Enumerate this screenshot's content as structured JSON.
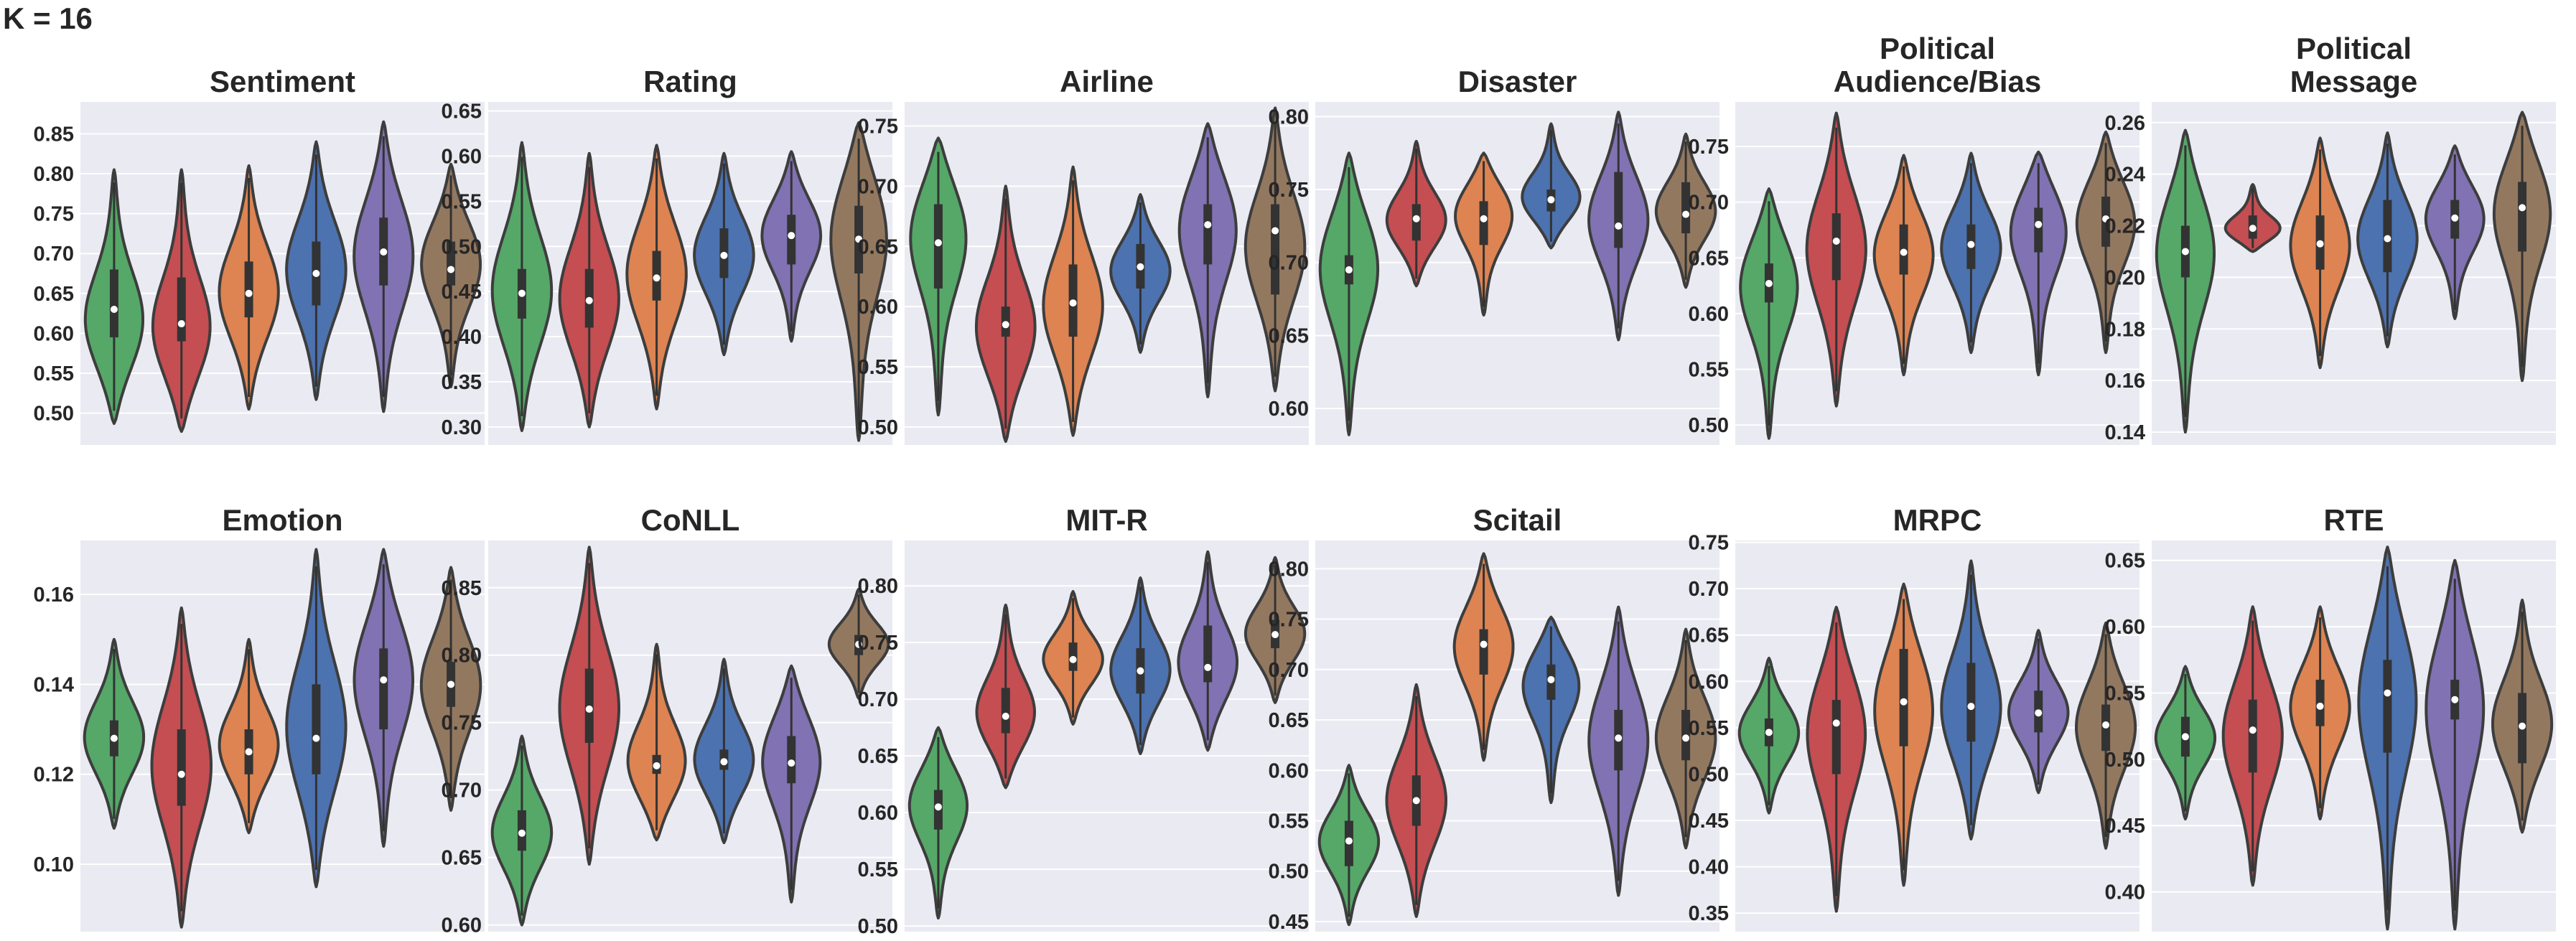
{
  "figure_label": "K = 16",
  "colors": {
    "panel_bg": "#eaeaf2",
    "grid": "#ffffff",
    "outline": "#3d3d3d",
    "text": "#262626",
    "box": "#333333",
    "median": "#ffffff",
    "series": [
      "#55a868",
      "#c44e52",
      "#dd8452",
      "#4c72b0",
      "#8172b3",
      "#937860"
    ]
  },
  "chart_data": [
    {
      "type": "violin",
      "title": [
        "Sentiment"
      ],
      "ylim": [
        0.46,
        0.89
      ],
      "yticks": [
        "0.50",
        "0.55",
        "0.60",
        "0.65",
        "0.70",
        "0.75",
        "0.80",
        "0.85"
      ],
      "violins": [
        {
          "min": 0.487,
          "max": 0.805,
          "q1": 0.595,
          "median": 0.63,
          "q3": 0.68,
          "mode": 0.61
        },
        {
          "min": 0.477,
          "max": 0.805,
          "q1": 0.59,
          "median": 0.612,
          "q3": 0.67,
          "mode": 0.6
        },
        {
          "min": 0.505,
          "max": 0.81,
          "q1": 0.62,
          "median": 0.65,
          "q3": 0.69,
          "mode": 0.65
        },
        {
          "min": 0.517,
          "max": 0.84,
          "q1": 0.635,
          "median": 0.675,
          "q3": 0.715,
          "mode": 0.68
        },
        {
          "min": 0.502,
          "max": 0.865,
          "q1": 0.66,
          "median": 0.702,
          "q3": 0.745,
          "mode": 0.7
        },
        {
          "min": 0.533,
          "max": 0.812,
          "q1": 0.66,
          "median": 0.68,
          "q3": 0.715,
          "mode": 0.69
        }
      ]
    },
    {
      "type": "violin",
      "title": [
        "Rating"
      ],
      "ylim": [
        0.28,
        0.66
      ],
      "yticks": [
        "0.30",
        "0.35",
        "0.40",
        "0.45",
        "0.50",
        "0.55",
        "0.60",
        "0.65"
      ],
      "violins": [
        {
          "min": 0.296,
          "max": 0.615,
          "q1": 0.42,
          "median": 0.448,
          "q3": 0.475,
          "mode": 0.45
        },
        {
          "min": 0.3,
          "max": 0.603,
          "q1": 0.41,
          "median": 0.44,
          "q3": 0.475,
          "mode": 0.44
        },
        {
          "min": 0.32,
          "max": 0.612,
          "q1": 0.44,
          "median": 0.465,
          "q3": 0.495,
          "mode": 0.47
        },
        {
          "min": 0.38,
          "max": 0.603,
          "q1": 0.465,
          "median": 0.49,
          "q3": 0.52,
          "mode": 0.49
        },
        {
          "min": 0.395,
          "max": 0.605,
          "q1": 0.48,
          "median": 0.512,
          "q3": 0.535,
          "mode": 0.515
        },
        {
          "min": 0.285,
          "max": 0.637,
          "q1": 0.47,
          "median": 0.508,
          "q3": 0.545,
          "mode": 0.52
        }
      ]
    },
    {
      "type": "violin",
      "title": [
        "Airline"
      ],
      "ylim": [
        0.485,
        0.77
      ],
      "yticks": [
        "0.50",
        "0.55",
        "0.60",
        "0.65",
        "0.70",
        "0.75"
      ],
      "violins": [
        {
          "min": 0.51,
          "max": 0.74,
          "q1": 0.615,
          "median": 0.653,
          "q3": 0.685,
          "mode": 0.665
        },
        {
          "min": 0.488,
          "max": 0.7,
          "q1": 0.575,
          "median": 0.585,
          "q3": 0.6,
          "mode": 0.58
        },
        {
          "min": 0.493,
          "max": 0.716,
          "q1": 0.575,
          "median": 0.603,
          "q3": 0.635,
          "mode": 0.6
        },
        {
          "min": 0.562,
          "max": 0.693,
          "q1": 0.615,
          "median": 0.633,
          "q3": 0.652,
          "mode": 0.63
        },
        {
          "min": 0.525,
          "max": 0.752,
          "q1": 0.635,
          "median": 0.668,
          "q3": 0.685,
          "mode": 0.67
        },
        {
          "min": 0.53,
          "max": 0.765,
          "q1": 0.61,
          "median": 0.663,
          "q3": 0.685,
          "mode": 0.65
        }
      ]
    },
    {
      "type": "violin",
      "title": [
        "Disaster"
      ],
      "ylim": [
        0.575,
        0.81
      ],
      "yticks": [
        "0.60",
        "0.65",
        "0.70",
        "0.75",
        "0.80"
      ],
      "violins": [
        {
          "min": 0.582,
          "max": 0.775,
          "q1": 0.685,
          "median": 0.695,
          "q3": 0.705,
          "mode": 0.7
        },
        {
          "min": 0.684,
          "max": 0.783,
          "q1": 0.715,
          "median": 0.73,
          "q3": 0.74,
          "mode": 0.728
        },
        {
          "min": 0.664,
          "max": 0.775,
          "q1": 0.712,
          "median": 0.73,
          "q3": 0.742,
          "mode": 0.735
        },
        {
          "min": 0.71,
          "max": 0.795,
          "q1": 0.735,
          "median": 0.743,
          "q3": 0.75,
          "mode": 0.743
        },
        {
          "min": 0.647,
          "max": 0.803,
          "q1": 0.71,
          "median": 0.725,
          "q3": 0.762,
          "mode": 0.73
        },
        {
          "min": 0.683,
          "max": 0.788,
          "q1": 0.72,
          "median": 0.733,
          "q3": 0.755,
          "mode": 0.735
        }
      ]
    },
    {
      "type": "violin",
      "title": [
        "Political",
        "Audience/Bias"
      ],
      "ylim": [
        0.482,
        0.79
      ],
      "yticks": [
        "0.50",
        "0.55",
        "0.60",
        "0.65",
        "0.70",
        "0.75"
      ],
      "violins": [
        {
          "min": 0.488,
          "max": 0.712,
          "q1": 0.61,
          "median": 0.627,
          "q3": 0.645,
          "mode": 0.63
        },
        {
          "min": 0.517,
          "max": 0.78,
          "q1": 0.63,
          "median": 0.665,
          "q3": 0.69,
          "mode": 0.66
        },
        {
          "min": 0.545,
          "max": 0.742,
          "q1": 0.635,
          "median": 0.655,
          "q3": 0.68,
          "mode": 0.655
        },
        {
          "min": 0.565,
          "max": 0.744,
          "q1": 0.64,
          "median": 0.662,
          "q3": 0.68,
          "mode": 0.66
        },
        {
          "min": 0.545,
          "max": 0.745,
          "q1": 0.655,
          "median": 0.68,
          "q3": 0.695,
          "mode": 0.68
        },
        {
          "min": 0.565,
          "max": 0.763,
          "q1": 0.66,
          "median": 0.685,
          "q3": 0.705,
          "mode": 0.685
        }
      ]
    },
    {
      "type": "violin",
      "title": [
        "Political",
        "Message"
      ],
      "ylim": [
        0.135,
        0.268
      ],
      "yticks": [
        "0.14",
        "0.16",
        "0.18",
        "0.20",
        "0.22",
        "0.24",
        "0.26"
      ],
      "violins": [
        {
          "min": 0.14,
          "max": 0.257,
          "q1": 0.2,
          "median": 0.21,
          "q3": 0.22,
          "mode": 0.212
        },
        {
          "min": 0.21,
          "max": 0.236,
          "q1": 0.215,
          "median": 0.219,
          "q3": 0.224,
          "mode": 0.218
        },
        {
          "min": 0.165,
          "max": 0.254,
          "q1": 0.203,
          "median": 0.213,
          "q3": 0.224,
          "mode": 0.213
        },
        {
          "min": 0.173,
          "max": 0.256,
          "q1": 0.202,
          "median": 0.215,
          "q3": 0.23,
          "mode": 0.215
        },
        {
          "min": 0.184,
          "max": 0.251,
          "q1": 0.215,
          "median": 0.223,
          "q3": 0.23,
          "mode": 0.224
        },
        {
          "min": 0.16,
          "max": 0.264,
          "q1": 0.21,
          "median": 0.227,
          "q3": 0.237,
          "mode": 0.228
        }
      ]
    },
    {
      "type": "violin",
      "title": [
        "Emotion"
      ],
      "ylim": [
        0.085,
        0.172
      ],
      "yticks": [
        "0.10",
        "0.12",
        "0.14",
        "0.16"
      ],
      "violins": [
        {
          "min": 0.108,
          "max": 0.15,
          "q1": 0.124,
          "median": 0.128,
          "q3": 0.132,
          "mode": 0.128
        },
        {
          "min": 0.086,
          "max": 0.157,
          "q1": 0.113,
          "median": 0.12,
          "q3": 0.13,
          "mode": 0.122
        },
        {
          "min": 0.107,
          "max": 0.15,
          "q1": 0.12,
          "median": 0.125,
          "q3": 0.13,
          "mode": 0.126
        },
        {
          "min": 0.095,
          "max": 0.17,
          "q1": 0.12,
          "median": 0.128,
          "q3": 0.14,
          "mode": 0.13
        },
        {
          "min": 0.104,
          "max": 0.17,
          "q1": 0.13,
          "median": 0.141,
          "q3": 0.148,
          "mode": 0.142
        },
        {
          "min": 0.112,
          "max": 0.166,
          "q1": 0.135,
          "median": 0.14,
          "q3": 0.145,
          "mode": 0.14
        }
      ]
    },
    {
      "type": "violin",
      "title": [
        "CoNLL"
      ],
      "ylim": [
        0.595,
        0.885
      ],
      "yticks": [
        "0.60",
        "0.65",
        "0.70",
        "0.75",
        "0.80",
        "0.85"
      ],
      "violins": [
        {
          "min": 0.6,
          "max": 0.74,
          "q1": 0.655,
          "median": 0.668,
          "q3": 0.685,
          "mode": 0.668
        },
        {
          "min": 0.645,
          "max": 0.88,
          "q1": 0.735,
          "median": 0.76,
          "q3": 0.79,
          "mode": 0.76
        },
        {
          "min": 0.663,
          "max": 0.808,
          "q1": 0.712,
          "median": 0.718,
          "q3": 0.726,
          "mode": 0.718
        },
        {
          "min": 0.661,
          "max": 0.797,
          "q1": 0.715,
          "median": 0.721,
          "q3": 0.73,
          "mode": 0.721
        },
        {
          "min": 0.617,
          "max": 0.792,
          "q1": 0.705,
          "median": 0.72,
          "q3": 0.74,
          "mode": 0.725
        },
        {
          "min": 0.768,
          "max": 0.849,
          "q1": 0.8,
          "median": 0.808,
          "q3": 0.815,
          "mode": 0.808
        }
      ]
    },
    {
      "type": "violin",
      "title": [
        "MIT-R"
      ],
      "ylim": [
        0.495,
        0.84
      ],
      "yticks": [
        "0.50",
        "0.55",
        "0.60",
        "0.65",
        "0.70",
        "0.75",
        "0.80"
      ],
      "violins": [
        {
          "min": 0.507,
          "max": 0.675,
          "q1": 0.585,
          "median": 0.605,
          "q3": 0.62,
          "mode": 0.61
        },
        {
          "min": 0.622,
          "max": 0.783,
          "q1": 0.67,
          "median": 0.685,
          "q3": 0.71,
          "mode": 0.685
        },
        {
          "min": 0.678,
          "max": 0.795,
          "q1": 0.725,
          "median": 0.735,
          "q3": 0.75,
          "mode": 0.735
        },
        {
          "min": 0.652,
          "max": 0.807,
          "q1": 0.705,
          "median": 0.725,
          "q3": 0.745,
          "mode": 0.725
        },
        {
          "min": 0.655,
          "max": 0.83,
          "q1": 0.715,
          "median": 0.728,
          "q3": 0.765,
          "mode": 0.73
        },
        {
          "min": 0.697,
          "max": 0.825,
          "q1": 0.745,
          "median": 0.757,
          "q3": 0.77,
          "mode": 0.757
        }
      ]
    },
    {
      "type": "violin",
      "title": [
        "Scitail"
      ],
      "ylim": [
        0.44,
        0.828
      ],
      "yticks": [
        "0.45",
        "0.50",
        "0.55",
        "0.60",
        "0.65",
        "0.70",
        "0.75",
        "0.80"
      ],
      "violins": [
        {
          "min": 0.447,
          "max": 0.605,
          "q1": 0.505,
          "median": 0.53,
          "q3": 0.55,
          "mode": 0.53
        },
        {
          "min": 0.455,
          "max": 0.685,
          "q1": 0.545,
          "median": 0.57,
          "q3": 0.595,
          "mode": 0.57
        },
        {
          "min": 0.61,
          "max": 0.815,
          "q1": 0.695,
          "median": 0.725,
          "q3": 0.74,
          "mode": 0.725
        },
        {
          "min": 0.568,
          "max": 0.752,
          "q1": 0.67,
          "median": 0.69,
          "q3": 0.705,
          "mode": 0.69
        },
        {
          "min": 0.476,
          "max": 0.762,
          "q1": 0.6,
          "median": 0.632,
          "q3": 0.66,
          "mode": 0.632
        },
        {
          "min": 0.523,
          "max": 0.74,
          "q1": 0.61,
          "median": 0.632,
          "q3": 0.66,
          "mode": 0.632
        }
      ]
    },
    {
      "type": "violin",
      "title": [
        "MRPC"
      ],
      "ylim": [
        0.33,
        0.752
      ],
      "yticks": [
        "0.35",
        "0.40",
        "0.45",
        "0.50",
        "0.55",
        "0.60",
        "0.65",
        "0.70",
        "0.75"
      ],
      "violins": [
        {
          "min": 0.458,
          "max": 0.625,
          "q1": 0.53,
          "median": 0.545,
          "q3": 0.56,
          "mode": 0.545
        },
        {
          "min": 0.352,
          "max": 0.68,
          "q1": 0.5,
          "median": 0.555,
          "q3": 0.58,
          "mode": 0.55
        },
        {
          "min": 0.38,
          "max": 0.705,
          "q1": 0.53,
          "median": 0.578,
          "q3": 0.635,
          "mode": 0.575
        },
        {
          "min": 0.43,
          "max": 0.73,
          "q1": 0.535,
          "median": 0.573,
          "q3": 0.62,
          "mode": 0.57
        },
        {
          "min": 0.48,
          "max": 0.655,
          "q1": 0.545,
          "median": 0.566,
          "q3": 0.59,
          "mode": 0.566
        },
        {
          "min": 0.42,
          "max": 0.663,
          "q1": 0.525,
          "median": 0.553,
          "q3": 0.575,
          "mode": 0.553
        }
      ]
    },
    {
      "type": "violin",
      "title": [
        "RTE"
      ],
      "ylim": [
        0.37,
        0.665
      ],
      "yticks": [
        "0.40",
        "0.45",
        "0.50",
        "0.55",
        "0.60",
        "0.65"
      ],
      "violins": [
        {
          "min": 0.455,
          "max": 0.57,
          "q1": 0.502,
          "median": 0.517,
          "q3": 0.532,
          "mode": 0.517
        },
        {
          "min": 0.405,
          "max": 0.615,
          "q1": 0.49,
          "median": 0.522,
          "q3": 0.545,
          "mode": 0.52
        },
        {
          "min": 0.455,
          "max": 0.615,
          "q1": 0.525,
          "median": 0.54,
          "q3": 0.56,
          "mode": 0.54
        },
        {
          "min": 0.372,
          "max": 0.66,
          "q1": 0.505,
          "median": 0.55,
          "q3": 0.575,
          "mode": 0.55
        },
        {
          "min": 0.372,
          "max": 0.65,
          "q1": 0.53,
          "median": 0.545,
          "q3": 0.56,
          "mode": 0.545
        },
        {
          "min": 0.445,
          "max": 0.62,
          "q1": 0.497,
          "median": 0.525,
          "q3": 0.55,
          "mode": 0.525
        }
      ]
    }
  ]
}
